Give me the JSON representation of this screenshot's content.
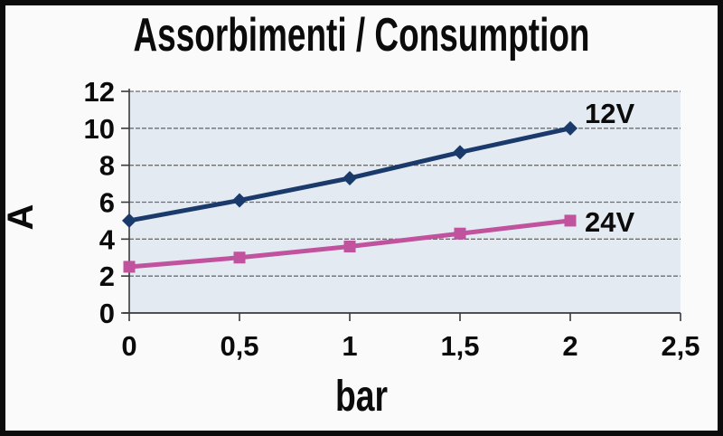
{
  "page": {
    "background": "#fafafa",
    "frame_border_color": "#0c0c0c"
  },
  "chart_data": {
    "type": "line",
    "title": "Assorbimenti / Consumption",
    "xlabel": "bar",
    "ylabel": "A",
    "x": [
      0,
      0.5,
      1,
      1.5,
      2
    ],
    "series": [
      {
        "name": "12V",
        "values": [
          5.0,
          6.1,
          7.3,
          8.7,
          10.0
        ],
        "color": "#1a3a6b",
        "marker": "diamond"
      },
      {
        "name": "24V",
        "values": [
          2.5,
          3.0,
          3.6,
          4.3,
          5.0
        ],
        "color": "#c0529e",
        "marker": "square"
      }
    ],
    "xlim": [
      0,
      2.5
    ],
    "ylim": [
      0,
      12
    ],
    "x_ticks": [
      0,
      0.5,
      1,
      1.5,
      2,
      2.5
    ],
    "x_tick_labels": [
      "0",
      "0,5",
      "1",
      "1,5",
      "2",
      "2,5"
    ],
    "y_ticks": [
      0,
      2,
      4,
      6,
      8,
      10,
      12
    ],
    "y_tick_labels": [
      "0",
      "2",
      "4",
      "6",
      "8",
      "10",
      "12"
    ],
    "grid": "horizontal",
    "grid_style": "dashed",
    "legend_position": "inline-right",
    "plot_background": "#e4eaf1",
    "grid_color": "#6e6e6e",
    "axis_color": "#3a3a3a",
    "text_color": "#0b0b0b"
  }
}
